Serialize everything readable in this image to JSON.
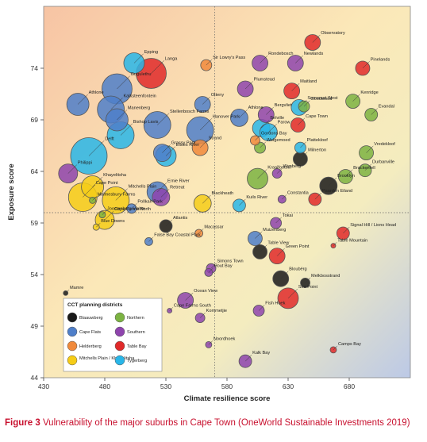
{
  "caption": {
    "label": "Figure 3",
    "text": "Vulnerability of the major suburbs in Cape Town (OneWorld Sustainable Investments 2019)"
  },
  "chart_data": {
    "type": "scatter",
    "xlabel": "Climate resilience score",
    "ylabel": "Exposure score",
    "xlim": [
      430,
      730
    ],
    "ylim": [
      44,
      80
    ],
    "xticks": [
      430,
      480,
      530,
      580,
      630,
      680
    ],
    "yticks": [
      44,
      49,
      54,
      59,
      64,
      69,
      74
    ],
    "mean_lines": {
      "x": 570,
      "y": 60
    },
    "legend_title": "CCT planning districts",
    "legend_position": "bottom-left",
    "districts": [
      {
        "name": "Blaauwberg",
        "color": "#1a1a1a"
      },
      {
        "name": "Northern",
        "color": "#7cb342"
      },
      {
        "name": "Cape Flats",
        "color": "#4f7fc9"
      },
      {
        "name": "Southern",
        "color": "#8e44ad"
      },
      {
        "name": "Helderberg",
        "color": "#f08a3c"
      },
      {
        "name": "Table Bay",
        "color": "#e02a2a"
      },
      {
        "name": "Mitchells Plain / Khayelitsha",
        "color": "#f5cc17"
      },
      {
        "name": "Tygerberg",
        "color": "#29b6e8"
      }
    ],
    "points": [
      {
        "name": "Epping",
        "x": 504,
        "y": 74.5,
        "size": 13,
        "district": "Tygerberg"
      },
      {
        "name": "Langa",
        "x": 518,
        "y": 73.5,
        "size": 19,
        "district": "Table Bay"
      },
      {
        "name": "Gugulethu",
        "x": 490,
        "y": 72,
        "size": 19,
        "district": "Cape Flats"
      },
      {
        "name": "Sir Lowry's Pass",
        "x": 563,
        "y": 74.3,
        "size": 7,
        "district": "Helderberg"
      },
      {
        "name": "Rondebosch",
        "x": 607,
        "y": 74.5,
        "size": 10,
        "district": "Southern"
      },
      {
        "name": "Newlands",
        "x": 636,
        "y": 74.5,
        "size": 10,
        "district": "Southern"
      },
      {
        "name": "Observatory",
        "x": 650,
        "y": 76.5,
        "size": 10,
        "district": "Table Bay"
      },
      {
        "name": "Pinelands",
        "x": 691,
        "y": 74,
        "size": 9,
        "district": "Table Bay"
      },
      {
        "name": "Plumstead",
        "x": 595,
        "y": 72,
        "size": 10,
        "district": "Southern"
      },
      {
        "name": "Maitland",
        "x": 633,
        "y": 71.8,
        "size": 10,
        "district": "Table Bay"
      },
      {
        "name": "Kenridge",
        "x": 683,
        "y": 70.8,
        "size": 9,
        "district": "Northern"
      },
      {
        "name": "Evandal",
        "x": 698,
        "y": 69.5,
        "size": 8,
        "district": "Northern"
      },
      {
        "name": "Athlone",
        "x": 458,
        "y": 70.5,
        "size": 14,
        "district": "Cape Flats"
      },
      {
        "name": "Kalksteenfontein",
        "x": 485,
        "y": 70,
        "size": 17,
        "district": "Cape Flats"
      },
      {
        "name": "Manenberg",
        "x": 490,
        "y": 69,
        "size": 14,
        "district": "Cape Flats"
      },
      {
        "name": "Otteny",
        "x": 560,
        "y": 70.5,
        "size": 10,
        "district": "Cape Flats"
      },
      {
        "name": "Stellenbosch Farms",
        "x": 523,
        "y": 68.5,
        "size": 17,
        "district": "Cape Flats"
      },
      {
        "name": "Athlone",
        "x": 590,
        "y": 69.2,
        "size": 11,
        "district": "Cape Flats"
      },
      {
        "name": "Bergvliet",
        "x": 612,
        "y": 69.5,
        "size": 10,
        "district": "Southern"
      },
      {
        "name": "Somerset West",
        "x": 639,
        "y": 70.2,
        "size": 10,
        "district": "Tygerberg"
      },
      {
        "name": "Goodwood",
        "x": 643,
        "y": 70.3,
        "size": 7,
        "district": "Northern"
      },
      {
        "name": "Cape Town",
        "x": 638,
        "y": 68.5,
        "size": 9,
        "district": "Table Bay"
      },
      {
        "name": "Hanover Park",
        "x": 558,
        "y": 68,
        "size": 17,
        "district": "Cape Flats"
      },
      {
        "name": "Belville",
        "x": 608,
        "y": 68.2,
        "size": 11,
        "district": "Tygerberg"
      },
      {
        "name": "Parow",
        "x": 614,
        "y": 67.8,
        "size": 11,
        "district": "Tygerberg"
      },
      {
        "name": "Delft",
        "x": 467,
        "y": 65.5,
        "size": 23,
        "district": "Tygerberg"
      },
      {
        "name": "Bishop Lavis",
        "x": 493,
        "y": 67.5,
        "size": 17,
        "district": "Tygerberg"
      },
      {
        "name": "Gordons Bay",
        "x": 603,
        "y": 67,
        "size": 6,
        "district": "Helderberg"
      },
      {
        "name": "Welgemoed",
        "x": 607,
        "y": 66.3,
        "size": 7,
        "district": "Northern"
      },
      {
        "name": "Plattekloof",
        "x": 640,
        "y": 66.3,
        "size": 7,
        "district": "Tygerberg"
      },
      {
        "name": "Grassy Park",
        "x": 527,
        "y": 65.8,
        "size": 11,
        "district": "Cape Flats"
      },
      {
        "name": "Elsies River",
        "x": 530,
        "y": 65.5,
        "size": 13,
        "district": "Tygerberg"
      },
      {
        "name": "Strand",
        "x": 558,
        "y": 66.3,
        "size": 10,
        "district": "Helderberg"
      },
      {
        "name": "Vredekloof",
        "x": 694,
        "y": 65.8,
        "size": 9,
        "district": "Northern"
      },
      {
        "name": "Durbanville",
        "x": 693,
        "y": 64.1,
        "size": 8,
        "district": "Northern"
      },
      {
        "name": "Philippi",
        "x": 450,
        "y": 63.8,
        "size": 12,
        "district": "Southern"
      },
      {
        "name": "Kraaifontein",
        "x": 605,
        "y": 63.3,
        "size": 13,
        "district": "Northern"
      },
      {
        "name": "Wynberg",
        "x": 621,
        "y": 63.8,
        "size": 6,
        "district": "Southern"
      },
      {
        "name": "Milnerton",
        "x": 640,
        "y": 65.2,
        "size": 9,
        "district": "Blaauwberg"
      },
      {
        "name": "Brackenfell",
        "x": 677,
        "y": 63.5,
        "size": 9,
        "district": "Northern"
      },
      {
        "name": "Khayelitsha",
        "x": 470,
        "y": 62.5,
        "size": 14,
        "district": "Mitchells Plain / Khayelitsha"
      },
      {
        "name": "Cape Point",
        "x": 462,
        "y": 61.5,
        "size": 18,
        "district": "Mitchells Plain / Khayelitsha"
      },
      {
        "name": "Mitchells Plain",
        "x": 489,
        "y": 61.2,
        "size": 17,
        "district": "Mitchells Plain / Khayelitsha"
      },
      {
        "name": "Ernie River",
        "x": 523,
        "y": 62,
        "size": 13,
        "district": "Cape Flats"
      },
      {
        "name": "Retreat",
        "x": 526,
        "y": 61.5,
        "size": 11,
        "district": "Southern"
      },
      {
        "name": "Blackheath",
        "x": 560,
        "y": 60.9,
        "size": 11,
        "district": "Mitchells Plain / Khayelitsha"
      },
      {
        "name": "Kuils River",
        "x": 590,
        "y": 60.7,
        "size": 8,
        "district": "Tygerberg"
      },
      {
        "name": "Constantia",
        "x": 625,
        "y": 61.3,
        "size": 5,
        "district": "Southern"
      },
      {
        "name": "Paarden Eiland",
        "x": 652,
        "y": 61.3,
        "size": 8,
        "district": "Table Bay"
      },
      {
        "name": "Brooklyn",
        "x": 663,
        "y": 62.6,
        "size": 11,
        "district": "Blaauwberg"
      },
      {
        "name": "Pollkan Park",
        "x": 502,
        "y": 60.4,
        "size": 6,
        "district": "Cape Flats"
      },
      {
        "name": "Malmesbury Farms",
        "x": 470,
        "y": 61.2,
        "size": 4,
        "district": "Northern"
      },
      {
        "name": "Joostenberg Vlakte",
        "x": 478,
        "y": 59.8,
        "size": 4,
        "district": "Northern"
      },
      {
        "name": "Cape Farms North",
        "x": 480,
        "y": 59.3,
        "size": 12,
        "district": "Mitchells Plain / Khayelitsha"
      },
      {
        "name": "Blue Downs",
        "x": 473,
        "y": 58.6,
        "size": 4,
        "district": "Mitchells Plain / Khayelitsha"
      },
      {
        "name": "Tokai",
        "x": 620,
        "y": 59,
        "size": 7,
        "district": "Southern"
      },
      {
        "name": "Atlantis",
        "x": 530,
        "y": 58.7,
        "size": 8,
        "district": "Blaauwberg"
      },
      {
        "name": "False Bay Coastal Park",
        "x": 516,
        "y": 57.2,
        "size": 5,
        "district": "Cape Flats"
      },
      {
        "name": "Signal Hill / Lions Head",
        "x": 675,
        "y": 58,
        "size": 8,
        "district": "Table Bay"
      },
      {
        "name": "Macassar",
        "x": 557,
        "y": 58,
        "size": 5,
        "district": "Helderberg"
      },
      {
        "name": "Muizenberg",
        "x": 603,
        "y": 57.5,
        "size": 9,
        "district": "Cape Flats"
      },
      {
        "name": "Table View",
        "x": 607,
        "y": 56.2,
        "size": 9,
        "district": "Blaauwberg"
      },
      {
        "name": "Table Mountain",
        "x": 667,
        "y": 56.8,
        "size": 3,
        "district": "Table Bay"
      },
      {
        "name": "Green Point",
        "x": 621,
        "y": 55.8,
        "size": 10,
        "district": "Table Bay"
      },
      {
        "name": "Simons Town",
        "x": 567,
        "y": 54.6,
        "size": 6,
        "district": "Southern"
      },
      {
        "name": "Hout Bay",
        "x": 565,
        "y": 54.2,
        "size": 5,
        "district": "Southern"
      },
      {
        "name": "Bloubérg",
        "x": 624,
        "y": 53.6,
        "size": 10,
        "district": "Blaauwberg"
      },
      {
        "name": "Melkbosstrand",
        "x": 644,
        "y": 53.2,
        "size": 6,
        "district": "Blaauwberg"
      },
      {
        "name": "Mamre",
        "x": 448,
        "y": 52.2,
        "size": 3,
        "district": "Blaauwberg"
      },
      {
        "name": "Ocean View",
        "x": 546,
        "y": 51.5,
        "size": 10,
        "district": "Southern"
      },
      {
        "name": "Sea Point",
        "x": 630,
        "y": 51.7,
        "size": 13,
        "district": "Table Bay"
      },
      {
        "name": "Fish Hoek",
        "x": 606,
        "y": 50.5,
        "size": 7,
        "district": "Southern"
      },
      {
        "name": "Kommetjie",
        "x": 558,
        "y": 49.8,
        "size": 6,
        "district": "Southern"
      },
      {
        "name": "Cape Farms South",
        "x": 533,
        "y": 50.5,
        "size": 3,
        "district": "Southern"
      },
      {
        "name": "Noordhoek",
        "x": 565,
        "y": 47.2,
        "size": 4,
        "district": "Southern"
      },
      {
        "name": "Kalk Bay",
        "x": 595,
        "y": 45.6,
        "size": 8,
        "district": "Southern"
      },
      {
        "name": "Camps Bay",
        "x": 667,
        "y": 46.7,
        "size": 4,
        "district": "Table Bay"
      }
    ]
  }
}
